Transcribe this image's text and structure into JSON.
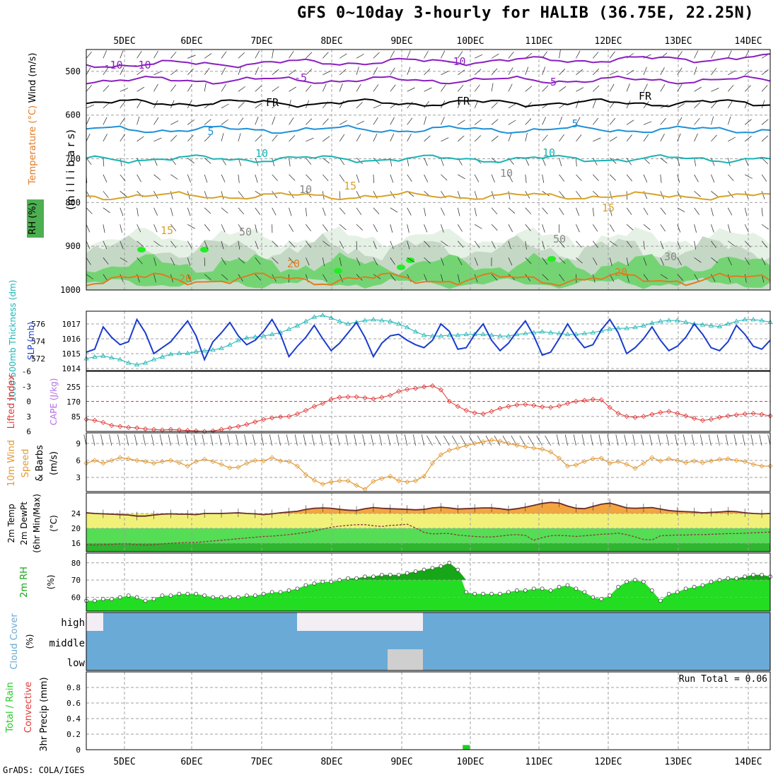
{
  "title": "GFS 0~10day 3-hourly for HALIB (36.75E, 22.25N)",
  "credit": "GrADS: COLA/IGES",
  "colors": {
    "grid": "#a0a0a0",
    "purple": "#8a1fc0",
    "black": "#000000",
    "blue": "#1e90d8",
    "cyan": "#18b4b4",
    "gold": "#d7a32a",
    "orange": "#e07b22",
    "slp": "#1a3ccc",
    "thickness": "#19b4b4",
    "lifted": "#e03838",
    "cape": "#b36ee6",
    "wind": "#e39a35",
    "temp_fill": "#f2a640",
    "dew_line": "#8b3a3a",
    "rh_bright": "#22dd22",
    "rh_dark": "#17a617",
    "cloud": "#6aaad6",
    "precip_green": "#22cc22"
  },
  "chart_data": [
    {
      "type": "line",
      "panel": "upper-air",
      "ylabel_parts": [
        "Temperature (°C)",
        "Wind (m/s)",
        "RH (%)",
        "(m i l l i b a r s)"
      ],
      "yticks": [
        "500",
        "600",
        "700",
        "800",
        "900",
        "1000"
      ],
      "ylim": [
        450,
        1000
      ],
      "x": [
        "5DEC",
        "6DEC",
        "7DEC",
        "8DEC",
        "9DEC",
        "10DEC",
        "11DEC",
        "12DEC",
        "13DEC",
        "14DEC"
      ],
      "contours": [
        {
          "name": "-10",
          "level_mb": 485
        },
        {
          "name": "-5",
          "level_mb": 520
        },
        {
          "name": "FR",
          "level_mb": 572
        },
        {
          "name": "5",
          "level_mb": 633
        },
        {
          "name": "10",
          "level_mb": 700
        },
        {
          "name": "15",
          "level_mb": 785
        },
        {
          "name": "20",
          "level_mb": 975
        }
      ],
      "contour_labels": [
        "-10",
        "-10",
        "-10",
        "-5",
        "-5",
        "FR",
        "FR",
        "FR",
        "5",
        "5",
        "10",
        "10",
        "15",
        "15",
        "15",
        "20",
        "20",
        "20",
        "10",
        "10",
        "50",
        "50",
        "30"
      ]
    },
    {
      "type": "line",
      "panel": "slp-thickness",
      "ylabel_left": "1000-500mb Thickness (dm)",
      "ylabel_right": "SLP (mb)",
      "left_ticks": [
        "576",
        "574",
        "572"
      ],
      "right_ticks": [
        "1017",
        "1016",
        "1015",
        "1014"
      ],
      "series": [
        {
          "name": "SLP (mb)",
          "values": [
            1015.1,
            1015.3,
            1016.8,
            1016.1,
            1015.6,
            1015.8,
            1017.3,
            1016.4,
            1015.0,
            1015.4,
            1015.8,
            1016.5,
            1017.2,
            1016.2,
            1014.6,
            1015.8,
            1016.4,
            1017.1,
            1016.2,
            1015.6,
            1015.9,
            1016.5,
            1017.3,
            1016.3,
            1014.8,
            1015.5,
            1016.1,
            1016.9,
            1016.0,
            1015.2,
            1015.7,
            1016.4,
            1017.1,
            1016.1,
            1014.8,
            1015.7,
            1016.2,
            1016.3,
            1015.9,
            1015.6,
            1015.4,
            1015.9,
            1017.0,
            1016.5,
            1015.3,
            1015.4,
            1016.3,
            1017.0,
            1015.9,
            1015.2,
            1015.7,
            1016.5,
            1017.2,
            1016.2,
            1014.9,
            1015.1,
            1016.0,
            1017.0,
            1016.1,
            1015.4,
            1015.6,
            1016.6,
            1017.3,
            1016.4,
            1015.0,
            1015.4,
            1016.0,
            1016.8,
            1015.9,
            1015.2,
            1015.5,
            1016.1,
            1017.0,
            1016.3,
            1015.4,
            1015.2,
            1015.8,
            1016.9,
            1016.3,
            1015.5,
            1015.3,
            1015.9
          ]
        },
        {
          "name": "Thickness (dm)",
          "values": [
            572.0,
            572.2,
            572.3,
            572.1,
            571.9,
            571.5,
            571.3,
            571.5,
            571.9,
            572.2,
            572.5,
            572.6,
            572.6,
            572.8,
            572.9,
            573.0,
            573.2,
            573.6,
            574.1,
            574.4,
            574.5,
            574.6,
            574.8,
            575.0,
            575.4,
            575.8,
            576.3,
            576.8,
            577.0,
            576.7,
            576.3,
            576.0,
            576.2,
            576.4,
            576.5,
            576.4,
            576.3,
            576.0,
            575.6,
            575.1,
            574.7,
            574.6,
            574.6,
            574.7,
            574.7,
            574.8,
            574.8,
            574.8,
            574.7,
            574.6,
            574.6,
            574.8,
            574.9,
            575.0,
            575.1,
            575.0,
            574.9,
            574.8,
            574.8,
            574.9,
            575.0,
            575.2,
            575.4,
            575.5,
            575.5,
            575.6,
            575.8,
            576.1,
            576.3,
            576.4,
            576.4,
            576.2,
            576.0,
            575.9,
            575.8,
            575.7,
            576.0,
            576.3,
            576.5,
            576.5,
            576.4,
            576.2
          ]
        }
      ]
    },
    {
      "type": "bar",
      "panel": "lifted-cape",
      "ylabel_left": "Lifted Index",
      "ylabel_right": "CAPE (J/kg)",
      "left_ticks": [
        "-6",
        "-3",
        "0",
        "3",
        "6"
      ],
      "right_ticks": [
        "255",
        "170",
        "85"
      ],
      "series": [
        {
          "name": "Lifted Index",
          "values": [
            3.6,
            3.8,
            4.2,
            4.8,
            5.0,
            5.2,
            5.3,
            5.5,
            5.6,
            5.7,
            5.6,
            5.7,
            5.8,
            5.9,
            6.0,
            5.9,
            5.6,
            5.3,
            5.0,
            4.6,
            4.1,
            3.6,
            3.3,
            3.1,
            3.0,
            2.5,
            1.8,
            1.0,
            0.4,
            -0.4,
            -0.8,
            -0.9,
            -0.9,
            -0.7,
            -0.5,
            -0.8,
            -1.2,
            -2.0,
            -2.4,
            -2.6,
            -2.9,
            -3.1,
            -2.3,
            0.0,
            1.0,
            1.8,
            2.3,
            2.5,
            2.0,
            1.4,
            1.0,
            0.7,
            0.6,
            0.8,
            1.1,
            1.2,
            0.9,
            0.4,
            0.0,
            -0.2,
            -0.4,
            -0.3,
            1.2,
            2.4,
            3.0,
            3.2,
            3.0,
            2.6,
            2.2,
            2.0,
            2.4,
            2.9,
            3.4,
            3.8,
            3.6,
            3.2,
            2.9,
            2.7,
            2.5,
            2.4,
            2.6,
            2.9
          ]
        },
        {
          "name": "CAPE (J/kg)",
          "values": [
            0,
            0,
            0,
            0,
            0,
            0,
            0,
            0,
            0,
            0,
            0,
            0,
            0,
            0,
            0,
            0,
            0,
            0,
            0,
            0,
            0,
            0,
            0,
            0,
            0,
            0,
            0,
            0,
            0,
            0,
            0,
            0,
            0,
            0,
            0,
            0,
            0,
            0,
            0,
            0,
            0,
            0,
            0,
            0,
            0,
            0,
            0,
            0,
            0,
            0,
            0,
            0,
            0,
            0,
            0,
            0,
            0,
            0,
            0,
            0,
            0,
            0,
            0,
            0,
            0,
            0,
            0,
            0,
            0,
            0,
            0,
            0,
            0,
            0,
            0,
            0,
            0,
            0,
            0,
            0,
            0,
            0
          ]
        }
      ]
    },
    {
      "type": "line",
      "panel": "wind10m",
      "ylabel": "10m Wind Speed & Barbs (m/s)",
      "yticks": [
        "9",
        "6",
        "3"
      ],
      "series": [
        {
          "name": "10m Wind Speed (m/s)",
          "values": [
            5.5,
            6.0,
            5.5,
            6.0,
            6.5,
            6.3,
            6.0,
            5.8,
            5.5,
            5.8,
            6.0,
            5.6,
            5.0,
            5.8,
            6.2,
            5.8,
            5.3,
            4.7,
            4.8,
            5.5,
            6.0,
            5.9,
            6.5,
            5.9,
            5.8,
            5.0,
            3.5,
            2.5,
            1.8,
            2.2,
            2.4,
            2.4,
            1.6,
            0.9,
            2.3,
            2.8,
            3.2,
            2.4,
            2.2,
            2.4,
            3.2,
            5.5,
            7.0,
            7.8,
            8.2,
            8.6,
            9.0,
            9.3,
            9.6,
            9.4,
            9.0,
            8.7,
            8.4,
            8.2,
            8.0,
            7.5,
            6.4,
            5.0,
            5.2,
            5.8,
            6.3,
            6.4,
            5.5,
            5.8,
            5.3,
            4.6,
            5.5,
            6.5,
            5.9,
            6.3,
            6.0,
            5.6,
            5.9,
            5.6,
            5.9,
            6.2,
            6.3,
            6.0,
            5.8,
            5.3,
            5.0,
            5.0
          ]
        }
      ]
    },
    {
      "type": "line",
      "panel": "temp2m",
      "ylabel": "2m Temp 2m DewPt (6hr Min/Max) (°C)",
      "yticks": [
        "24",
        "20",
        "16"
      ],
      "series": [
        {
          "name": "2m Temp (°C)",
          "values": [
            24.2,
            24.0,
            23.9,
            23.8,
            23.7,
            23.6,
            23.3,
            23.3,
            23.6,
            23.8,
            23.9,
            23.8,
            23.8,
            23.7,
            24.0,
            24.0,
            24.0,
            24.1,
            24.2,
            24.0,
            23.9,
            23.7,
            23.9,
            24.2,
            24.4,
            24.6,
            25.1,
            25.4,
            25.5,
            25.4,
            25.1,
            24.9,
            24.8,
            25.3,
            25.6,
            25.4,
            25.3,
            25.2,
            25.1,
            25.0,
            25.1,
            25.5,
            25.7,
            25.5,
            25.2,
            25.3,
            25.4,
            25.5,
            25.5,
            25.3,
            25.0,
            25.3,
            25.7,
            26.2,
            26.7,
            27.0,
            26.8,
            26.0,
            25.4,
            25.3,
            25.9,
            26.5,
            26.8,
            26.2,
            25.5,
            25.4,
            25.5,
            25.6,
            25.2,
            24.8,
            24.6,
            24.5,
            24.4,
            24.2,
            24.3,
            24.4,
            24.6,
            24.5,
            24.2,
            24.0,
            23.9,
            24.0
          ]
        },
        {
          "name": "2m DewPt (°C)",
          "values": [
            15.6,
            15.5,
            15.6,
            15.7,
            15.8,
            15.8,
            15.6,
            15.5,
            15.6,
            15.8,
            16.0,
            16.1,
            16.2,
            16.2,
            16.4,
            16.6,
            16.8,
            17.0,
            17.2,
            17.4,
            17.6,
            17.8,
            17.9,
            18.1,
            18.3,
            18.6,
            18.9,
            19.3,
            19.8,
            20.3,
            20.6,
            20.8,
            21.0,
            21.0,
            20.7,
            20.5,
            20.8,
            20.9,
            21.1,
            20.1,
            18.9,
            18.5,
            18.6,
            18.6,
            18.2,
            18.0,
            17.8,
            17.7,
            17.7,
            17.9,
            18.2,
            18.3,
            18.1,
            16.8,
            17.5,
            18.0,
            18.1,
            18.0,
            17.8,
            18.0,
            18.2,
            18.4,
            18.5,
            18.7,
            18.3,
            17.7,
            17.0,
            16.9,
            18.0,
            18.1,
            18.2,
            18.2,
            18.3,
            18.3,
            18.4,
            18.5,
            18.6,
            18.6,
            18.7,
            18.8,
            18.9,
            19.0
          ]
        }
      ]
    },
    {
      "type": "area",
      "panel": "rh2m",
      "ylabel": "2m RH (%)",
      "yticks": [
        "80",
        "70",
        "60"
      ],
      "series": [
        {
          "name": "2m RH (%)",
          "values": [
            58,
            58,
            59,
            59,
            60,
            61,
            60,
            58,
            59,
            61,
            61,
            62,
            62,
            62,
            61,
            60,
            60,
            60,
            60,
            61,
            61,
            62,
            63,
            63,
            64,
            65,
            67,
            68,
            69,
            69,
            70,
            71,
            71,
            72,
            72,
            73,
            73,
            73,
            74,
            75,
            76,
            77,
            78,
            80,
            76,
            63,
            62,
            62,
            62,
            62,
            63,
            64,
            64,
            65,
            65,
            64,
            66,
            67,
            65,
            63,
            60,
            59,
            61,
            66,
            69,
            70,
            69,
            64,
            58,
            62,
            63,
            65,
            66,
            67,
            69,
            70,
            71,
            71,
            72,
            73,
            73,
            72
          ]
        }
      ]
    },
    {
      "type": "area",
      "panel": "cloud",
      "ylabel": "Cloud Cover (%)",
      "yticks": [
        "high",
        "middle",
        "low"
      ]
    },
    {
      "type": "bar",
      "panel": "precip",
      "ylabel_left_parts": [
        "Total / Rain",
        "Convective",
        "3hr Precip (mm)"
      ],
      "yticks": [
        "0.8",
        "0.6",
        "0.4",
        "0.2",
        "0"
      ],
      "annotation": "Run Total = 0.06",
      "series": [
        {
          "name": "3hr Precip (mm)",
          "values": [
            0,
            0,
            0,
            0,
            0,
            0,
            0,
            0,
            0,
            0,
            0,
            0,
            0,
            0,
            0,
            0,
            0,
            0,
            0,
            0,
            0,
            0,
            0,
            0,
            0,
            0,
            0,
            0,
            0,
            0,
            0,
            0,
            0,
            0,
            0,
            0,
            0,
            0,
            0,
            0,
            0,
            0,
            0,
            0,
            0,
            0.06,
            0,
            0,
            0,
            0,
            0,
            0,
            0,
            0,
            0,
            0,
            0,
            0,
            0,
            0,
            0,
            0,
            0,
            0,
            0,
            0,
            0,
            0,
            0,
            0,
            0,
            0,
            0,
            0,
            0,
            0,
            0,
            0,
            0,
            0,
            0,
            0
          ]
        }
      ]
    }
  ]
}
